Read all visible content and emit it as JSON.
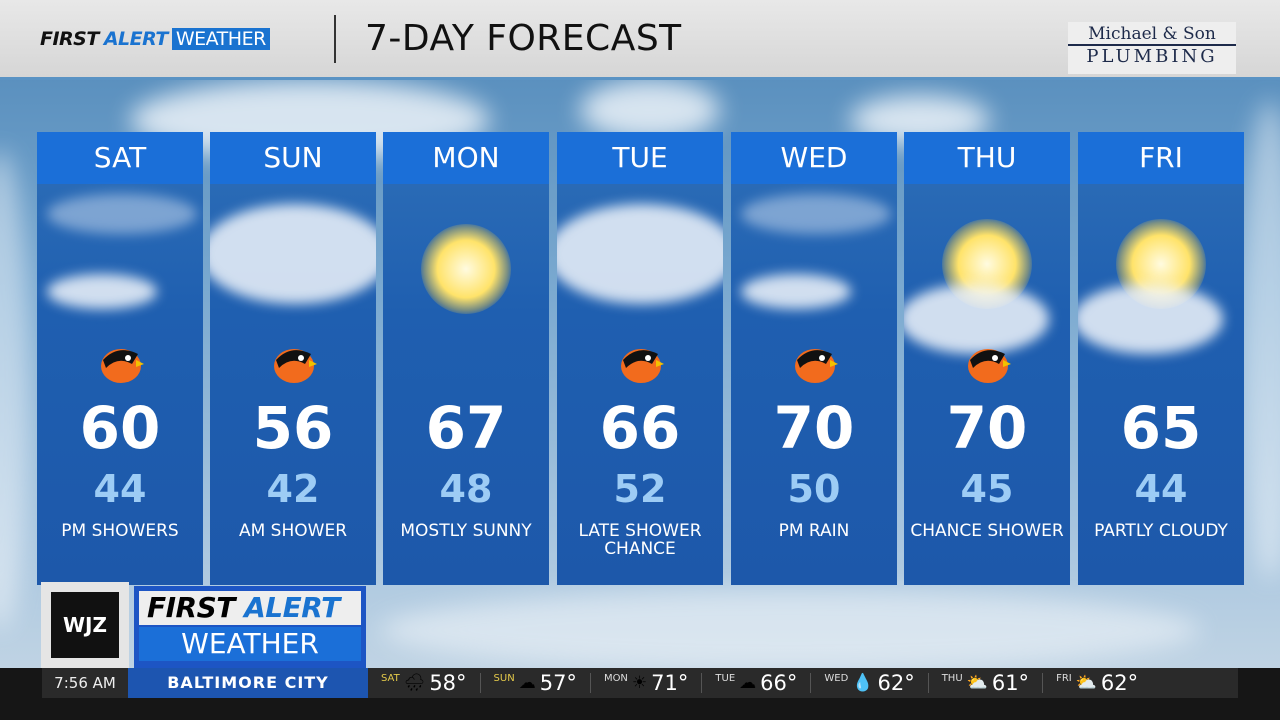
{
  "header": {
    "brand_first": "FIRST",
    "brand_alert": "ALERT",
    "brand_weather": "WEATHER",
    "title": "7-DAY FORECAST",
    "sponsor": {
      "line1": "Michael & Son",
      "line2": "PLUMBING"
    }
  },
  "days": [
    {
      "day": "SAT",
      "high": "60",
      "low": "44",
      "condition": "PM SHOWERS",
      "icon": "clouds-rain",
      "orioles": true
    },
    {
      "day": "SUN",
      "high": "56",
      "low": "42",
      "condition": "AM SHOWER",
      "icon": "clouds",
      "orioles": true
    },
    {
      "day": "MON",
      "high": "67",
      "low": "48",
      "condition": "MOSTLY SUNNY",
      "icon": "sun",
      "orioles": false
    },
    {
      "day": "TUE",
      "high": "66",
      "low": "52",
      "condition": "LATE SHOWER CHANCE",
      "icon": "clouds",
      "orioles": true
    },
    {
      "day": "WED",
      "high": "70",
      "low": "50",
      "condition": "PM RAIN",
      "icon": "clouds-rain",
      "orioles": true
    },
    {
      "day": "THU",
      "high": "70",
      "low": "45",
      "condition": "CHANCE SHOWER",
      "icon": "sun-clouds",
      "orioles": true
    },
    {
      "day": "FRI",
      "high": "65",
      "low": "44",
      "condition": "PARTLY CLOUDY",
      "icon": "sun-clouds",
      "orioles": false
    }
  ],
  "station": {
    "call": "WJZ",
    "brand_first": "FIRST",
    "brand_alert": "ALERT",
    "brand_weather": "WEATHER"
  },
  "ticker": {
    "time": "7:56 AM",
    "city": "BALTIMORE CITY",
    "items": [
      {
        "day": "SAT",
        "temp": "58°",
        "icon": "rain-cloud-icon",
        "glyph": "🌧"
      },
      {
        "day": "SUN",
        "temp": "57°",
        "icon": "cloud-icon",
        "glyph": "☁"
      },
      {
        "day": "MON",
        "temp": "71°",
        "icon": "sun-icon",
        "glyph": "☀"
      },
      {
        "day": "TUE",
        "temp": "66°",
        "icon": "cloud-icon",
        "glyph": "☁"
      },
      {
        "day": "WED",
        "temp": "62°",
        "icon": "raindrops-icon",
        "glyph": "💧"
      },
      {
        "day": "THU",
        "temp": "61°",
        "icon": "partly-sunny-icon",
        "glyph": "⛅"
      },
      {
        "day": "FRI",
        "temp": "62°",
        "icon": "partly-sunny-icon",
        "glyph": "⛅"
      }
    ]
  },
  "colors": {
    "header_blue": "#1b6fd8",
    "low_temp": "#9dccf5",
    "city_bar": "#1d55b0"
  }
}
